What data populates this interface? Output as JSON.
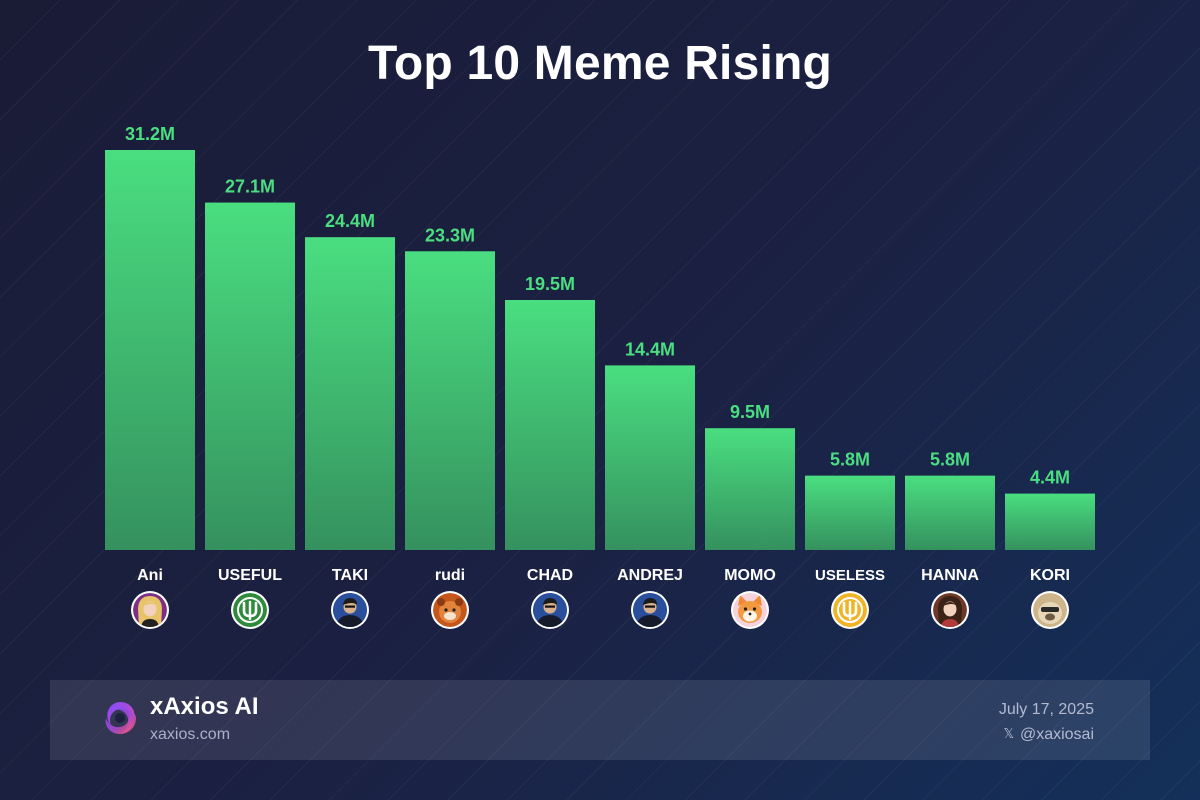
{
  "chart_data": {
    "type": "bar",
    "title": "Top 10 Meme Rising",
    "categories": [
      "Ani",
      "USEFUL",
      "TAKI",
      "rudi",
      "CHAD",
      "ANDREJ",
      "MOMO",
      "USELESS",
      "HANNA",
      "KORI"
    ],
    "values": [
      31.2,
      27.1,
      24.4,
      23.3,
      19.5,
      14.4,
      9.5,
      5.8,
      5.8,
      4.4
    ],
    "value_labels": [
      "31.2M",
      "27.1M",
      "24.4M",
      "23.3M",
      "19.5M",
      "14.4M",
      "9.5M",
      "5.8M",
      "5.8M",
      "4.4M"
    ],
    "unit": "M",
    "ylim": [
      0,
      31.2
    ],
    "grid": false,
    "legend": "none",
    "icons": [
      "anime-girl-avatar",
      "useful-coin-icon",
      "suited-man-avatar",
      "rudi-panda-avatar",
      "suited-man-avatar",
      "suited-man-avatar",
      "shiba-dog-avatar",
      "useless-coin-icon",
      "anime-girl-avatar",
      "pug-dog-avatar"
    ],
    "icon_colors": [
      "#7b2f86",
      "#2f8a3c",
      "#1f3d7a",
      "#c5561c",
      "#1f3d7a",
      "#1f3d7a",
      "#f6d2dc",
      "#f0b429",
      "#6d3a2a",
      "#cdb48b"
    ],
    "bar_color_top": "#4ade80",
    "bar_color_bottom": "#35915e",
    "label_color": "#4ade80"
  },
  "footer": {
    "brand_name": "xAxios AI",
    "brand_url": "xaxios.com",
    "date": "July 17, 2025",
    "handle": "@xaxiosai",
    "handle_icon": "x-logo-icon"
  }
}
